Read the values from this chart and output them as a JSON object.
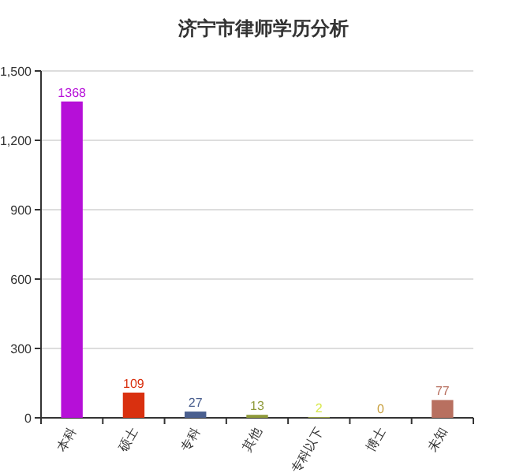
{
  "chart_data": {
    "type": "bar",
    "title": "济宁市律师学历分析",
    "categories": [
      "本科",
      "硕士",
      "专科",
      "其他",
      "专科以下",
      "博士",
      "未知"
    ],
    "values": [
      1368,
      109,
      27,
      13,
      2,
      0,
      77
    ],
    "colors": [
      "#b60fd8",
      "#d9300f",
      "#4a5f8f",
      "#8f9a3a",
      "#d8e84a",
      "#c8a040",
      "#b87060"
    ],
    "ylim": [
      0,
      1500
    ],
    "yticks": [
      0,
      300,
      600,
      900,
      {
        "value": 1200,
        "label": "1,200"
      },
      {
        "value": 1500,
        "label": "1,500"
      }
    ],
    "grid": "y",
    "data_labels": true
  }
}
